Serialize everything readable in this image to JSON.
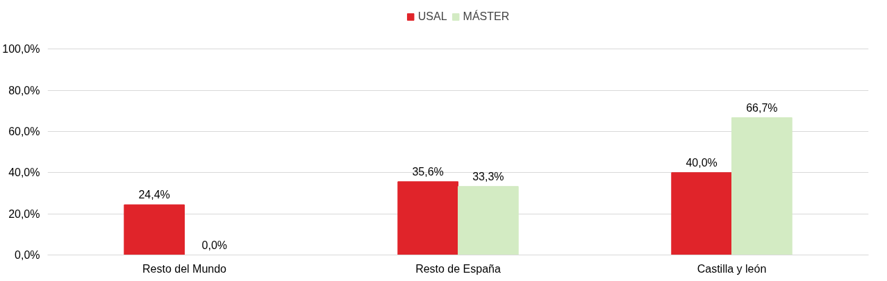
{
  "chart_data": {
    "type": "bar",
    "categories": [
      "Resto del Mundo",
      "Resto de España",
      "Castilla y león"
    ],
    "series": [
      {
        "name": "USAL",
        "color": "#e0242a",
        "values": [
          24.4,
          35.6,
          40.0
        ],
        "value_labels": [
          "24,4%",
          "35,6%",
          "40,0%"
        ]
      },
      {
        "name": "MÁSTER",
        "color": "#d3ebc3",
        "values": [
          0.0,
          33.3,
          66.7
        ],
        "value_labels": [
          "0,0%",
          "33,3%",
          "66,7%"
        ]
      }
    ],
    "ylim": [
      0,
      100
    ],
    "yticks": [
      {
        "value": 0,
        "label": "0,0%"
      },
      {
        "value": 20,
        "label": "20,0%"
      },
      {
        "value": 40,
        "label": "40,0%"
      },
      {
        "value": 60,
        "label": "60,0%"
      },
      {
        "value": 80,
        "label": "80,0%"
      },
      {
        "value": 100,
        "label": "100,0%"
      }
    ],
    "grid": "y",
    "legend": "top"
  }
}
